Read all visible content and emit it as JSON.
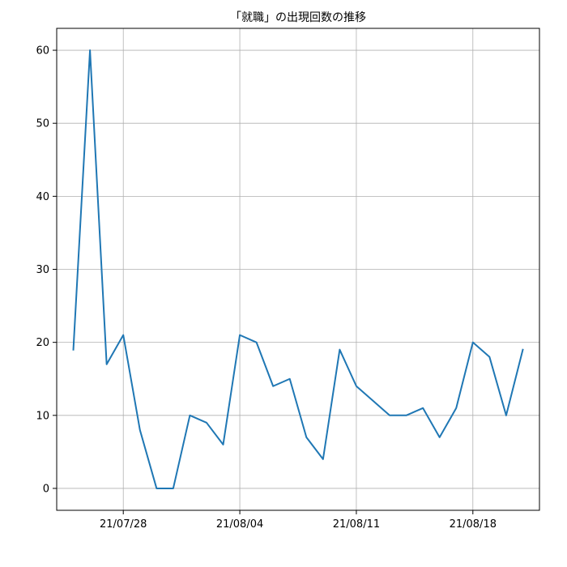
{
  "chart_data": {
    "type": "line",
    "title": "「就職」の出現回数の推移",
    "xlabel": "",
    "ylabel": "",
    "x": [
      "2021-07-25",
      "2021-07-26",
      "2021-07-27",
      "2021-07-28",
      "2021-07-29",
      "2021-07-30",
      "2021-07-31",
      "2021-08-01",
      "2021-08-02",
      "2021-08-03",
      "2021-08-04",
      "2021-08-05",
      "2021-08-06",
      "2021-08-07",
      "2021-08-08",
      "2021-08-09",
      "2021-08-10",
      "2021-08-11",
      "2021-08-12",
      "2021-08-13",
      "2021-08-14",
      "2021-08-15",
      "2021-08-16",
      "2021-08-17",
      "2021-08-18",
      "2021-08-19",
      "2021-08-20",
      "2021-08-21"
    ],
    "series": [
      {
        "color": "#1f77b4",
        "values": [
          19,
          60,
          17,
          21,
          8,
          0,
          0,
          10,
          9,
          6,
          21,
          20,
          14,
          15,
          7,
          4,
          19,
          14,
          12,
          10,
          10,
          11,
          7,
          11,
          20,
          18,
          10,
          19
        ]
      }
    ],
    "ylim": [
      -3,
      63
    ],
    "xlim": [
      "2021-07-24",
      "2021-08-22"
    ],
    "x_ticks": [
      {
        "value": "2021-07-28",
        "label": "21/07/28"
      },
      {
        "value": "2021-08-04",
        "label": "21/08/04"
      },
      {
        "value": "2021-08-11",
        "label": "21/08/11"
      },
      {
        "value": "2021-08-18",
        "label": "21/08/18"
      }
    ],
    "y_ticks": [
      0,
      10,
      20,
      30,
      40,
      50,
      60
    ],
    "grid": true,
    "legend": false
  }
}
